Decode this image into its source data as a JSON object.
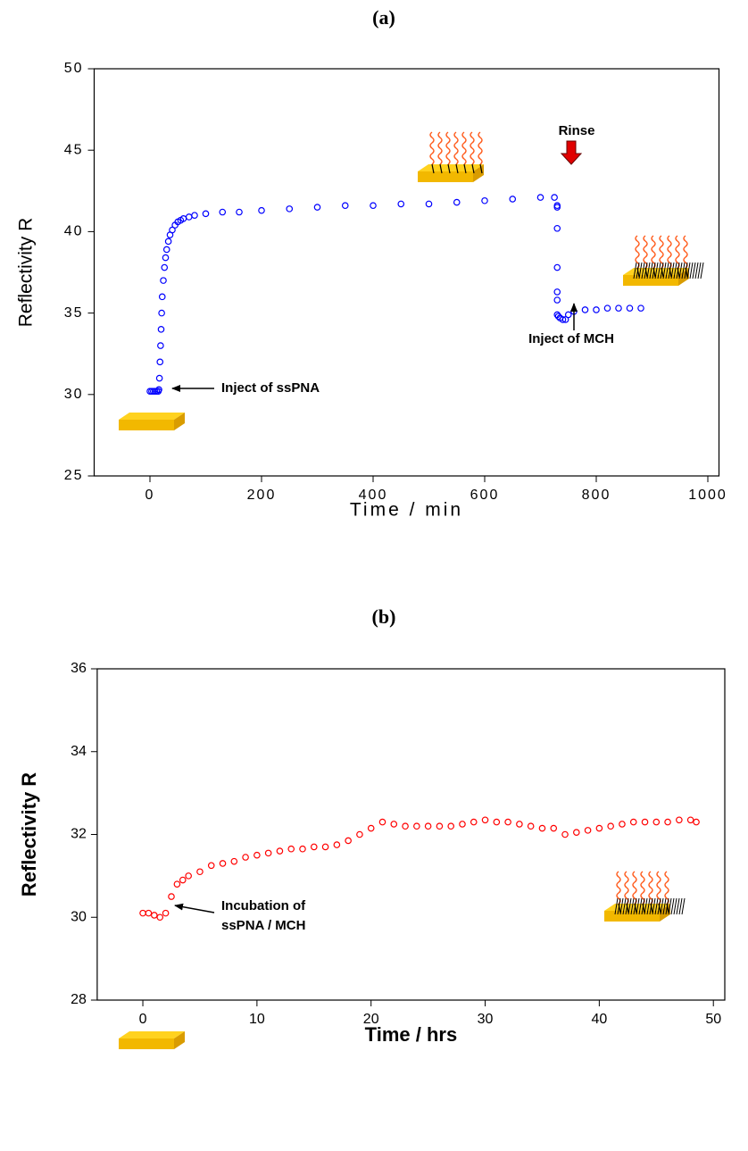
{
  "chart_data": [
    {
      "type": "scatter",
      "title": "(a)",
      "x_label": "Time / min",
      "y_label": "Reflectivity R",
      "color": "#0000ff",
      "x": [
        0,
        3,
        6,
        9,
        12,
        15,
        16,
        17,
        18,
        19,
        20,
        21,
        22,
        24,
        26,
        28,
        30,
        33,
        36,
        40,
        45,
        50,
        55,
        60,
        70,
        80,
        100,
        130,
        160,
        200,
        250,
        300,
        350,
        400,
        450,
        500,
        550,
        600,
        650,
        700,
        725,
        730,
        730,
        730,
        730,
        730,
        730,
        730,
        732,
        735,
        740,
        745,
        750,
        760,
        780,
        800,
        820,
        840,
        860,
        880
      ],
      "values": [
        30.2,
        30.2,
        30.2,
        30.2,
        30.2,
        30.2,
        30.3,
        31,
        32,
        33,
        34,
        35,
        36,
        37,
        37.8,
        38.4,
        38.9,
        39.4,
        39.8,
        40.1,
        40.4,
        40.6,
        40.7,
        40.8,
        40.9,
        41,
        41.1,
        41.2,
        41.2,
        41.3,
        41.4,
        41.5,
        41.6,
        41.6,
        41.7,
        41.7,
        41.8,
        41.9,
        42,
        42.1,
        42.1,
        41.6,
        41.5,
        40.2,
        37.8,
        36.3,
        35.8,
        34.9,
        34.8,
        34.7,
        34.6,
        34.6,
        34.9,
        35.1,
        35.2,
        35.2,
        35.3,
        35.3,
        35.3,
        35.3
      ],
      "xlim": [
        -100,
        1020
      ],
      "xticks": [
        0,
        200,
        400,
        600,
        800,
        1000
      ],
      "ylim": [
        25,
        50
      ],
      "yticks": [
        25,
        30,
        35,
        40,
        45,
        50
      ],
      "annotations": [
        "Inject of ssPNA",
        "Rinse",
        "Inject of MCH"
      ]
    },
    {
      "type": "scatter",
      "title": "(b)",
      "x_label": "Time / hrs",
      "y_label": "Reflectivity R",
      "color": "#ff0000",
      "x": [
        0,
        0.5,
        1,
        1.5,
        2,
        2.5,
        3,
        3.5,
        4,
        5,
        6,
        7,
        8,
        9,
        10,
        11,
        12,
        13,
        14,
        15,
        16,
        17,
        18,
        19,
        20,
        21,
        22,
        23,
        24,
        25,
        26,
        27,
        28,
        29,
        30,
        31,
        32,
        33,
        34,
        35,
        36,
        37,
        38,
        39,
        40,
        41,
        42,
        43,
        44,
        45,
        46,
        47,
        48,
        48.5
      ],
      "values": [
        30.1,
        30.1,
        30.05,
        30.0,
        30.1,
        30.5,
        30.8,
        30.9,
        31.0,
        31.1,
        31.25,
        31.3,
        31.35,
        31.45,
        31.5,
        31.55,
        31.6,
        31.65,
        31.65,
        31.7,
        31.7,
        31.75,
        31.85,
        32.0,
        32.15,
        32.3,
        32.25,
        32.2,
        32.2,
        32.2,
        32.2,
        32.2,
        32.25,
        32.3,
        32.35,
        32.3,
        32.3,
        32.25,
        32.2,
        32.15,
        32.15,
        32.0,
        32.05,
        32.1,
        32.15,
        32.2,
        32.25,
        32.3,
        32.3,
        32.3,
        32.3,
        32.35,
        32.35,
        32.3
      ],
      "xlim": [
        -4,
        51
      ],
      "xticks": [
        0,
        10,
        20,
        30,
        40,
        50
      ],
      "ylim": [
        28,
        36
      ],
      "yticks": [
        28,
        30,
        32,
        34,
        36
      ],
      "annotations": [
        "Incubation of",
        "ssPNA / MCH"
      ]
    }
  ]
}
